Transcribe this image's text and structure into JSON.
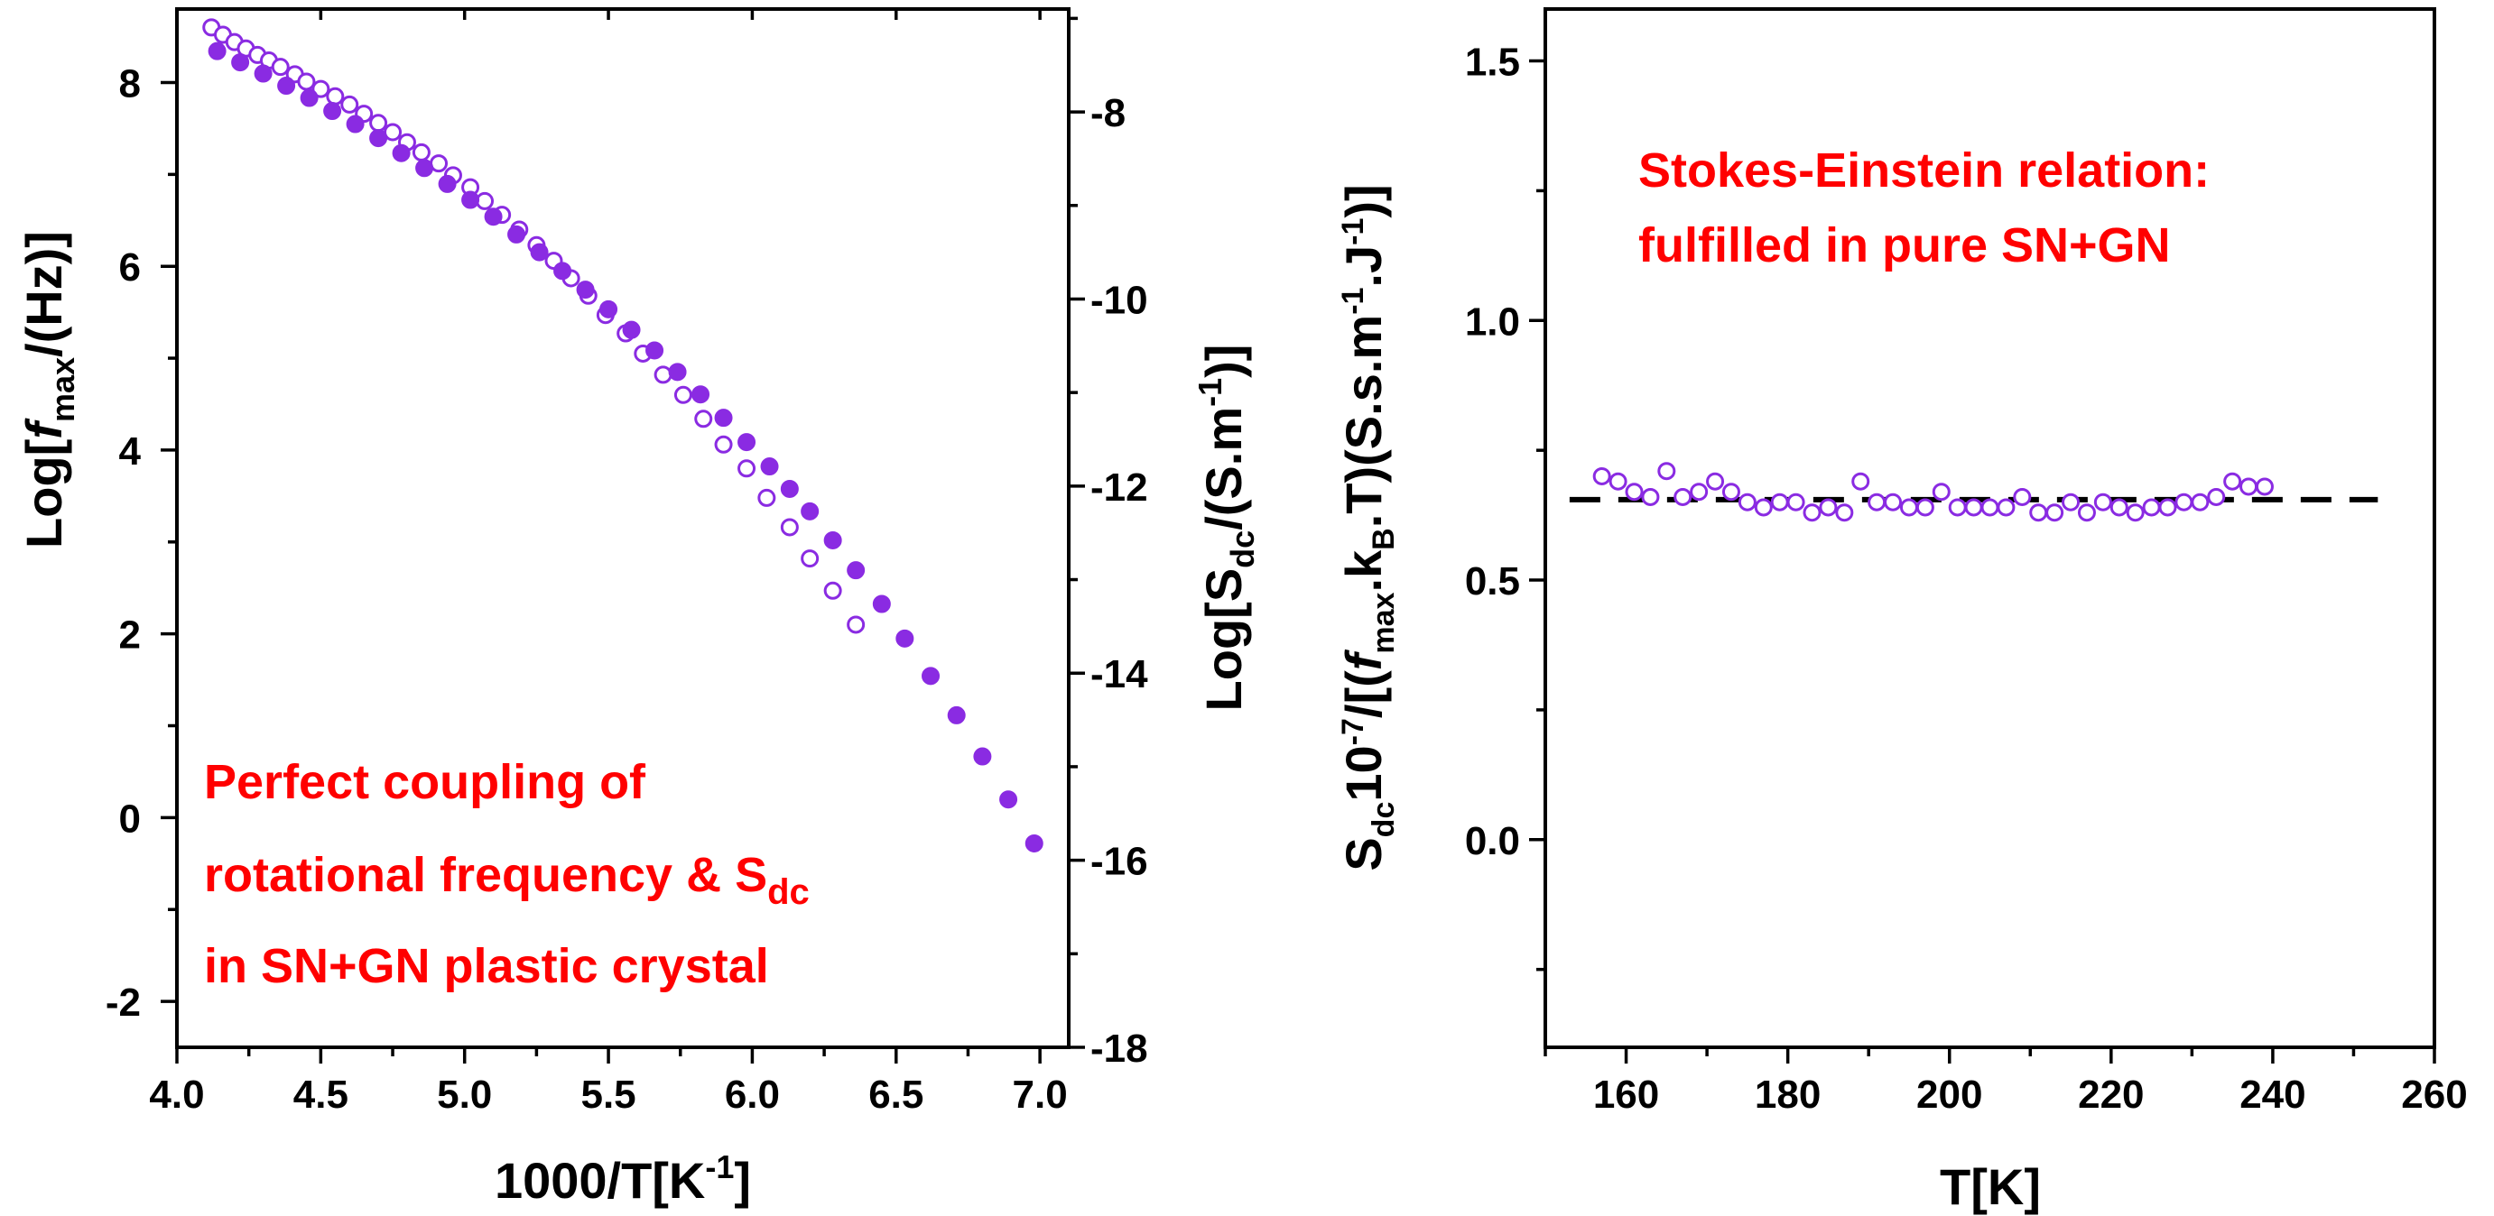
{
  "colors": {
    "series": "#8a2be2",
    "annotation": "#ff0000",
    "dashed_line": "#000000"
  },
  "chart_data": [
    {
      "type": "scatter",
      "panel": "left",
      "xlabel": {
        "pre": "1000/T[K",
        "sup": "-1",
        "post": "]"
      },
      "ylabel_left": {
        "pre": "Log[",
        "ital": "f",
        "sub": "max",
        "post": "/(Hz)]"
      },
      "ylabel_right": {
        "pre": "Log[S",
        "sub": "dc",
        "mid": "/(S.m",
        "sup": "-1",
        "post": ")]"
      },
      "xlim": [
        4.0,
        7.1
      ],
      "ylim_left": [
        -2.5,
        8.8
      ],
      "ylim_right": [
        -18.0,
        -6.9
      ],
      "xticks": [
        "4.0",
        "4.5",
        "5.0",
        "5.5",
        "6.0",
        "6.5",
        "7.0"
      ],
      "xtick_values": [
        4.0,
        4.5,
        5.0,
        5.5,
        6.0,
        6.5,
        7.0
      ],
      "yticks_left": [
        "-2",
        "0",
        "2",
        "4",
        "6",
        "8"
      ],
      "ytick_left_values": [
        -2,
        0,
        2,
        4,
        6,
        8
      ],
      "yticks_right": [
        "-18",
        "-16",
        "-14",
        "-12",
        "-10",
        "-8"
      ],
      "ytick_right_values": [
        -18,
        -16,
        -14,
        -12,
        -10,
        -8
      ],
      "series": [
        {
          "marker": "open-circle",
          "axis": "left",
          "x": [
            4.12,
            4.16,
            4.2,
            4.24,
            4.28,
            4.32,
            4.36,
            4.41,
            4.45,
            4.5,
            4.55,
            4.6,
            4.65,
            4.7,
            4.75,
            4.8,
            4.85,
            4.91,
            4.96,
            5.02,
            5.07,
            5.13,
            5.19,
            5.25,
            5.31,
            5.37,
            5.43,
            5.49,
            5.56,
            5.62,
            5.69,
            5.76,
            5.83,
            5.9,
            5.98,
            6.05,
            6.13,
            6.2,
            6.28,
            6.36
          ],
          "y": [
            8.6,
            8.52,
            8.44,
            8.37,
            8.3,
            8.24,
            8.17,
            8.09,
            8.01,
            7.93,
            7.85,
            7.76,
            7.66,
            7.56,
            7.46,
            7.35,
            7.24,
            7.12,
            6.99,
            6.86,
            6.71,
            6.56,
            6.4,
            6.23,
            6.06,
            5.87,
            5.68,
            5.47,
            5.27,
            5.05,
            4.82,
            4.6,
            4.34,
            4.06,
            3.8,
            3.48,
            3.16,
            2.82,
            2.47,
            2.1
          ]
        },
        {
          "marker": "filled-circle",
          "axis": "right",
          "x": [
            4.14,
            4.22,
            4.3,
            4.38,
            4.46,
            4.54,
            4.62,
            4.7,
            4.78,
            4.86,
            4.94,
            5.02,
            5.1,
            5.18,
            5.26,
            5.34,
            5.42,
            5.5,
            5.58,
            5.66,
            5.74,
            5.82,
            5.9,
            5.98,
            6.06,
            6.13,
            6.2,
            6.28,
            6.36,
            6.45,
            6.53,
            6.62,
            6.71,
            6.8,
            6.89,
            6.98
          ],
          "y": [
            -7.35,
            -7.47,
            -7.59,
            -7.72,
            -7.85,
            -7.99,
            -8.13,
            -8.28,
            -8.44,
            -8.6,
            -8.77,
            -8.94,
            -9.12,
            -9.31,
            -9.5,
            -9.7,
            -9.9,
            -10.11,
            -10.33,
            -10.55,
            -10.78,
            -11.02,
            -11.27,
            -11.53,
            -11.79,
            -12.03,
            -12.27,
            -12.58,
            -12.9,
            -13.26,
            -13.63,
            -14.03,
            -14.45,
            -14.89,
            -15.35,
            -15.82
          ]
        }
      ],
      "annotation": [
        {
          "parts": [
            {
              "t": "Perfect coupling of"
            }
          ]
        },
        {
          "parts": [
            {
              "t": "rotational frequency & S"
            },
            {
              "t": "dc",
              "sub": true
            }
          ]
        },
        {
          "parts": [
            {
              "t": "in SN+GN plastic crystal"
            }
          ]
        }
      ]
    },
    {
      "type": "scatter",
      "panel": "right",
      "xlabel": {
        "text": "T[K]"
      },
      "ylabel": {
        "p1": "S",
        "s1": "dc",
        "p2": "10",
        "u1": "-7",
        "p3": "/[(",
        "ital": "f",
        "s2": "max",
        "p4": ".k",
        "s3": "B",
        "p5": ".T)(S.s.m",
        "u2": "-1",
        "p6": ".J",
        "u3": "-1",
        "p7": ")]"
      },
      "xlim": [
        150,
        260
      ],
      "ylim": [
        -0.4,
        1.6
      ],
      "xticks": [
        "160",
        "180",
        "200",
        "220",
        "240",
        "260"
      ],
      "xtick_values": [
        160,
        180,
        200,
        220,
        240,
        260
      ],
      "yticks": [
        "0.0",
        "0.5",
        "1.0",
        "1.5"
      ],
      "ytick_values": [
        0.0,
        0.5,
        1.0,
        1.5
      ],
      "series": [
        {
          "marker": "open-circle",
          "x": [
            157,
            159,
            161,
            163,
            165,
            167,
            169,
            171,
            173,
            175,
            177,
            179,
            181,
            183,
            185,
            187,
            189,
            191,
            193,
            195,
            197,
            199,
            201,
            203,
            205,
            207,
            209,
            211,
            213,
            215,
            217,
            219,
            221,
            223,
            225,
            227,
            229,
            231,
            233,
            235,
            237,
            239
          ],
          "y": [
            0.7,
            0.69,
            0.67,
            0.66,
            0.71,
            0.66,
            0.67,
            0.69,
            0.67,
            0.65,
            0.64,
            0.65,
            0.65,
            0.63,
            0.64,
            0.63,
            0.69,
            0.65,
            0.65,
            0.64,
            0.64,
            0.67,
            0.64,
            0.64,
            0.64,
            0.64,
            0.66,
            0.63,
            0.63,
            0.65,
            0.63,
            0.65,
            0.64,
            0.63,
            0.64,
            0.64,
            0.65,
            0.65,
            0.66,
            0.69,
            0.68,
            0.68
          ]
        }
      ],
      "reference_line": {
        "style": "dashed",
        "y": 0.655,
        "x_start": 153,
        "x_end": 253
      },
      "annotation": [
        {
          "parts": [
            {
              "t": "Stokes-Einstein relation:"
            }
          ]
        },
        {
          "parts": [
            {
              "t": "fulfilled in pure SN+GN"
            }
          ]
        }
      ]
    }
  ]
}
